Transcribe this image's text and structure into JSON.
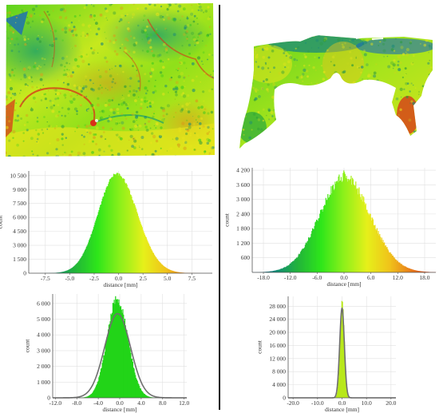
{
  "colors": {
    "scale": [
      "#0a4a8c",
      "#118a78",
      "#22b43a",
      "#2ee61a",
      "#8ef01a",
      "#e6f01a",
      "#f0c21a",
      "#e8761a",
      "#d83018"
    ],
    "fit_curve": "#6f6f6f",
    "grid": "#e0e0e0",
    "axis": "#555555",
    "divider": "#111111"
  },
  "surfaces": [
    {
      "name": "left-surface-deviation-map",
      "colormap": "distance-deviation"
    },
    {
      "name": "right-surface-deviation-map",
      "colormap": "distance-deviation"
    }
  ],
  "chart_data": [
    {
      "id": "left-middle-histogram",
      "type": "area",
      "xlabel": "distance [mm]",
      "ylabel": "count",
      "xlim": [
        -9.2,
        9.6
      ],
      "ylim": [
        0,
        11000
      ],
      "x_ticks": [
        -7.5,
        -5.0,
        -2.5,
        0.0,
        2.5,
        5.0,
        7.5
      ],
      "x_tick_labels": [
        "-7.5",
        "-5.0",
        "-2.5",
        "0.0",
        "2.5",
        "5.0",
        "7.5"
      ],
      "y_ticks": [
        0,
        1500,
        3000,
        4500,
        6000,
        7500,
        9000,
        10500
      ],
      "y_tick_labels": [
        "0",
        "1 500",
        "3 000",
        "4 500",
        "6 000",
        "7 500",
        "9 000",
        "10 500"
      ],
      "grid": true,
      "colored_by_distance": true,
      "color_range": [
        -9.2,
        9.6
      ],
      "distribution": {
        "mean": -0.2,
        "peak": 10700,
        "sigma_left": 1.9,
        "sigma_right": 2.1,
        "noise": 0.015
      },
      "points": [
        {
          "x": -9.0,
          "y": 0
        },
        {
          "x": -7.5,
          "y": 60
        },
        {
          "x": -6.0,
          "y": 350
        },
        {
          "x": -5.0,
          "y": 1000
        },
        {
          "x": -4.0,
          "y": 2400
        },
        {
          "x": -3.0,
          "y": 4950
        },
        {
          "x": -2.0,
          "y": 8100
        },
        {
          "x": -1.0,
          "y": 10180
        },
        {
          "x": -0.2,
          "y": 10700
        },
        {
          "x": 1.0,
          "y": 9950
        },
        {
          "x": 2.0,
          "y": 8300
        },
        {
          "x": 3.0,
          "y": 5900
        },
        {
          "x": 4.0,
          "y": 3500
        },
        {
          "x": 5.0,
          "y": 1800
        },
        {
          "x": 6.0,
          "y": 750
        },
        {
          "x": 7.5,
          "y": 150
        },
        {
          "x": 9.0,
          "y": 10
        }
      ]
    },
    {
      "id": "right-middle-histogram",
      "type": "area",
      "xlabel": "distance [mm]",
      "ylabel": "count",
      "xlim": [
        -20.5,
        20.5
      ],
      "ylim": [
        0,
        4300
      ],
      "x_ticks": [
        -18,
        -12,
        -6,
        0,
        6,
        12,
        18
      ],
      "x_tick_labels": [
        "-18.0",
        "-12.0",
        "-6.0",
        "0.0",
        "6.0",
        "12.0",
        "18.0"
      ],
      "y_ticks": [
        600,
        1200,
        1800,
        2400,
        3000,
        3600,
        4200
      ],
      "y_tick_labels": [
        "600",
        "1 200",
        "1 800",
        "2 400",
        "3 000",
        "3 600",
        "4 200"
      ],
      "grid": true,
      "colored_by_distance": true,
      "color_range": [
        -20.5,
        20.5
      ],
      "distribution": {
        "mean": 0.0,
        "peak": 3900,
        "sigma_left": 5.5,
        "sigma_right": 5.8,
        "noise": 0.06,
        "skew_spike": 4200
      },
      "points": [
        {
          "x": -20.0,
          "y": 0
        },
        {
          "x": -18.0,
          "y": 30
        },
        {
          "x": -15.0,
          "y": 150
        },
        {
          "x": -12.0,
          "y": 600
        },
        {
          "x": -9.0,
          "y": 1650
        },
        {
          "x": -6.0,
          "y": 2800
        },
        {
          "x": -3.0,
          "y": 3600
        },
        {
          "x": 0.0,
          "y": 3950
        },
        {
          "x": 3.0,
          "y": 3400
        },
        {
          "x": 6.0,
          "y": 2850
        },
        {
          "x": 9.0,
          "y": 1800
        },
        {
          "x": 12.0,
          "y": 900
        },
        {
          "x": 15.0,
          "y": 350
        },
        {
          "x": 18.0,
          "y": 90
        },
        {
          "x": 20.0,
          "y": 20
        }
      ]
    },
    {
      "id": "left-bottom-histogram",
      "type": "area",
      "xlabel": "distance [mm]",
      "ylabel": "count",
      "xlim": [
        -12.5,
        12.5
      ],
      "ylim": [
        0,
        6600
      ],
      "x_ticks": [
        -12,
        -8,
        -4,
        0,
        4,
        8,
        12
      ],
      "x_tick_labels": [
        "-12.0",
        "-8.0",
        "-4.0",
        "0.0",
        "4.0",
        "8.0",
        "12.0"
      ],
      "y_ticks": [
        0,
        1000,
        2000,
        3000,
        4000,
        5000,
        6000
      ],
      "y_tick_labels": [
        "0",
        "1 000",
        "2 000",
        "3 000",
        "4 000",
        "5 000",
        "6 000"
      ],
      "grid": true,
      "colored_by_distance": false,
      "fill_color": "#22d418",
      "distribution": {
        "mean": -0.5,
        "peak": 6300,
        "sigma_left": 1.9,
        "sigma_right": 2.0,
        "noise": 0.05
      },
      "fit_curve": {
        "mean": -0.4,
        "peak": 5350,
        "sigma": 2.4
      },
      "points": [
        {
          "x": -8.0,
          "y": 0
        },
        {
          "x": -6.0,
          "y": 120
        },
        {
          "x": -4.0,
          "y": 1250
        },
        {
          "x": -2.5,
          "y": 3750
        },
        {
          "x": -1.0,
          "y": 6000
        },
        {
          "x": -0.5,
          "y": 6300
        },
        {
          "x": 0.5,
          "y": 5950
        },
        {
          "x": 2.0,
          "y": 3900
        },
        {
          "x": 3.5,
          "y": 1550
        },
        {
          "x": 5.0,
          "y": 350
        },
        {
          "x": 7.0,
          "y": 0
        }
      ]
    },
    {
      "id": "right-bottom-histogram",
      "type": "area",
      "xlabel": "distance [mm]",
      "ylabel": "count",
      "xlim": [
        -22,
        22
      ],
      "ylim": [
        0,
        31000
      ],
      "x_ticks": [
        -20,
        -10,
        0,
        10,
        20
      ],
      "x_tick_labels": [
        "-20.0",
        "-10.0",
        "0.0",
        "10.0",
        "20.0"
      ],
      "y_ticks": [
        0,
        4000,
        8000,
        12000,
        16000,
        20000,
        24000,
        28000
      ],
      "y_tick_labels": [
        "0",
        "4 000",
        "8 000",
        "12 000",
        "16 000",
        "20 000",
        "24 000",
        "28 000"
      ],
      "grid": true,
      "colored_by_distance": false,
      "fill_color": "#b8e81a",
      "distribution": {
        "mean": 0.0,
        "peak": 29500,
        "sigma_left": 0.85,
        "sigma_right": 0.9,
        "noise": 0.02
      },
      "fit_curve": {
        "mean": 0.0,
        "peak": 27500,
        "sigma": 0.95
      },
      "points": [
        {
          "x": -4.0,
          "y": 0
        },
        {
          "x": -2.0,
          "y": 2200
        },
        {
          "x": -1.0,
          "y": 15500
        },
        {
          "x": 0.0,
          "y": 29500
        },
        {
          "x": 1.0,
          "y": 16000
        },
        {
          "x": 2.0,
          "y": 2400
        },
        {
          "x": 4.0,
          "y": 0
        }
      ]
    }
  ]
}
